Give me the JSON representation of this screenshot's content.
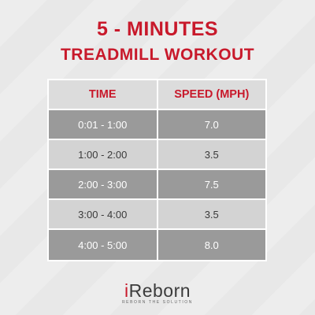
{
  "title": {
    "line1": "5 - MINUTES",
    "line2": "TREADMILL WORKOUT"
  },
  "table": {
    "headers": [
      "TIME",
      "SPEED (MPH)"
    ],
    "rows": [
      {
        "time": "0:01 - 1:00",
        "speed": "7.0"
      },
      {
        "time": "1:00 - 2:00",
        "speed": "3.5"
      },
      {
        "time": "2:00 - 3:00",
        "speed": "7.5"
      },
      {
        "time": "3:00 - 4:00",
        "speed": "3.5"
      },
      {
        "time": "4:00 - 5:00",
        "speed": "8.0"
      }
    ]
  },
  "brand": {
    "logo_i": "i",
    "logo_rest": "Reborn",
    "tagline": "REBORN THE SOLUTION"
  },
  "colors": {
    "accent": "#c8192b",
    "row_dark": "#9a9a9a",
    "row_light": "#d3d3d3",
    "header_bg": "#dcdcdc"
  }
}
